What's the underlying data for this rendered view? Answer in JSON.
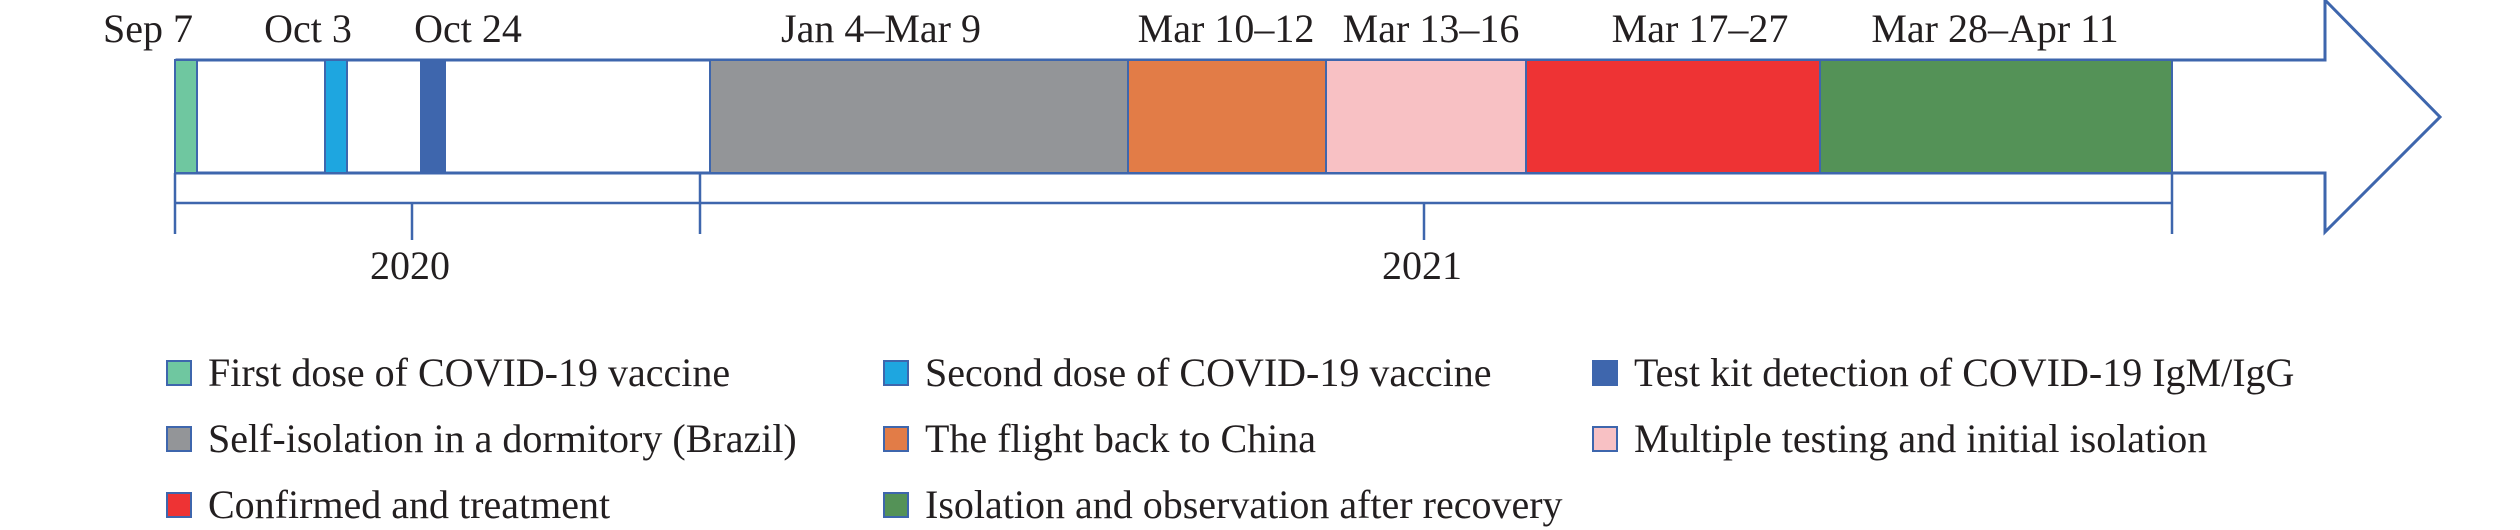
{
  "timeline": {
    "arrow_stroke": "#3e66ad",
    "events": [
      {
        "label": "Sep 7",
        "key": "first_dose"
      },
      {
        "label": "Oct 3",
        "key": "second_dose"
      },
      {
        "label": "Oct 24",
        "key": "test_kit"
      },
      {
        "label": "Jan 4–Mar 9",
        "key": "self_isolation"
      },
      {
        "label": "Mar 10–12",
        "key": "flight"
      },
      {
        "label": "Mar 13–16",
        "key": "multiple_testing"
      },
      {
        "label": "Mar 17–27",
        "key": "confirmed"
      },
      {
        "label": "Mar 28–Apr 11",
        "key": "isolation_after"
      }
    ],
    "years": [
      {
        "label": "2020"
      },
      {
        "label": "2021"
      }
    ]
  },
  "legend": {
    "items": [
      {
        "key": "first_dose",
        "label": "First dose of COVID-19 vaccine",
        "color": "#6fc7a0"
      },
      {
        "key": "second_dose",
        "label": "Second dose of COVID-19 vaccine",
        "color": "#1ea6e0"
      },
      {
        "key": "test_kit",
        "label": "Test kit detection of COVID-19 IgM/IgG",
        "color": "#3e66ad"
      },
      {
        "key": "self_isolation",
        "label": "Self-isolation in a dormitory (Brazil)",
        "color": "#939598"
      },
      {
        "key": "flight",
        "label": "The flight back to China",
        "color": "#e27c47"
      },
      {
        "key": "multiple_testing",
        "label": "Multiple testing and initial isolation",
        "color": "#f8c1c4"
      },
      {
        "key": "confirmed",
        "label": "Confirmed and treatment",
        "color": "#ee3334"
      },
      {
        "key": "isolation_after",
        "label": "Isolation and observation after recovery",
        "color": "#549257"
      }
    ]
  }
}
